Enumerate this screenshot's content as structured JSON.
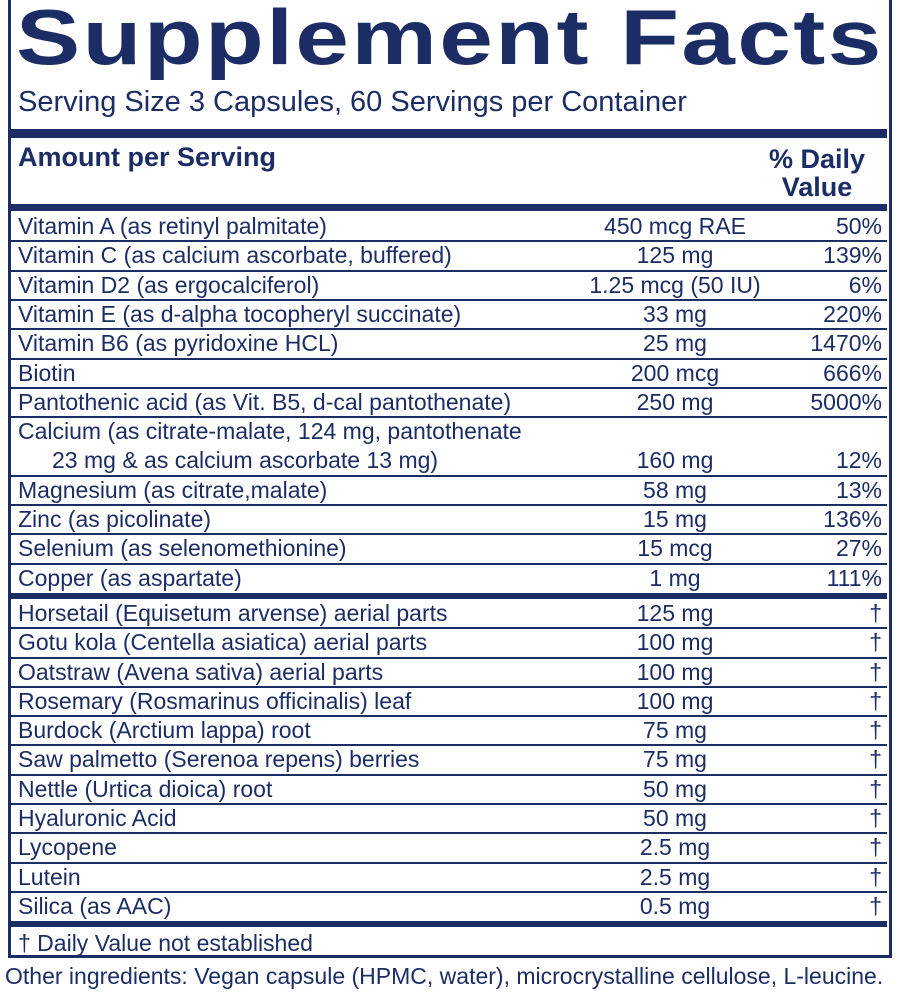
{
  "header": {
    "title": "Supplement Facts",
    "serving": "Serving Size 3 Capsules, 60 Servings per Container",
    "amount_label": "Amount per Serving",
    "dv_label": "% Daily Value"
  },
  "nutrients": [
    {
      "name": "Vitamin A (as retinyl palmitate)",
      "amount": "450 mcg RAE",
      "dv": "50%"
    },
    {
      "name": "Vitamin C (as calcium ascorbate, buffered)",
      "amount": "125 mg",
      "dv": "139%"
    },
    {
      "name": "Vitamin D2 (as ergocalciferol)",
      "amount": "1.25 mcg (50 IU)",
      "dv": "6%"
    },
    {
      "name": "Vitamin E (as d-alpha tocopheryl succinate)",
      "amount": "33 mg",
      "dv": "220%"
    },
    {
      "name": "Vitamin B6 (as pyridoxine HCL)",
      "amount": "25 mg",
      "dv": "1470%"
    },
    {
      "name": "Biotin",
      "amount": "200 mcg",
      "dv": "666%"
    },
    {
      "name": "Pantothenic acid (as Vit. B5, d-cal pantothenate)",
      "amount": "250 mg",
      "dv": "5000%"
    },
    {
      "name": "Calcium (as citrate-malate, 124 mg, pantothenate",
      "name2": "23 mg & as calcium ascorbate 13 mg)",
      "amount": "160 mg",
      "dv": "12%"
    },
    {
      "name": "Magnesium (as citrate,malate)",
      "amount": "58 mg",
      "dv": "13%"
    },
    {
      "name": "Zinc (as picolinate)",
      "amount": "15 mg",
      "dv": "136%"
    },
    {
      "name": "Selenium (as selenomethionine)",
      "amount": "15 mcg",
      "dv": "27%"
    },
    {
      "name": "Copper (as aspartate)",
      "amount": "1 mg",
      "dv": "111%"
    }
  ],
  "others": [
    {
      "name": "Horsetail (Equisetum arvense) aerial parts",
      "amount": "125 mg",
      "dv": "†"
    },
    {
      "name": "Gotu kola (Centella asiatica) aerial parts",
      "amount": "100 mg",
      "dv": "†"
    },
    {
      "name": "Oatstraw (Avena sativa) aerial parts",
      "amount": "100 mg",
      "dv": "†"
    },
    {
      "name": "Rosemary (Rosmarinus officinalis) leaf",
      "amount": "100 mg",
      "dv": "†"
    },
    {
      "name": "Burdock (Arctium lappa) root",
      "amount": "75 mg",
      "dv": "†"
    },
    {
      "name": "Saw palmetto (Serenoa repens) berries",
      "amount": "75 mg",
      "dv": "†"
    },
    {
      "name": "Nettle (Urtica dioica) root",
      "amount": "50 mg",
      "dv": "†"
    },
    {
      "name": "Hyaluronic Acid",
      "amount": "50 mg",
      "dv": "†"
    },
    {
      "name": "Lycopene",
      "amount": "2.5 mg",
      "dv": "†"
    },
    {
      "name": "Lutein",
      "amount": "2.5 mg",
      "dv": "†"
    },
    {
      "name": "Silica (as AAC)",
      "amount": "0.5 mg",
      "dv": "†"
    }
  ],
  "footnote": "† Daily Value not established",
  "other_ingredients": "Other ingredients: Vegan capsule (HPMC, water), microcrystalline cellulose, L-leucine."
}
